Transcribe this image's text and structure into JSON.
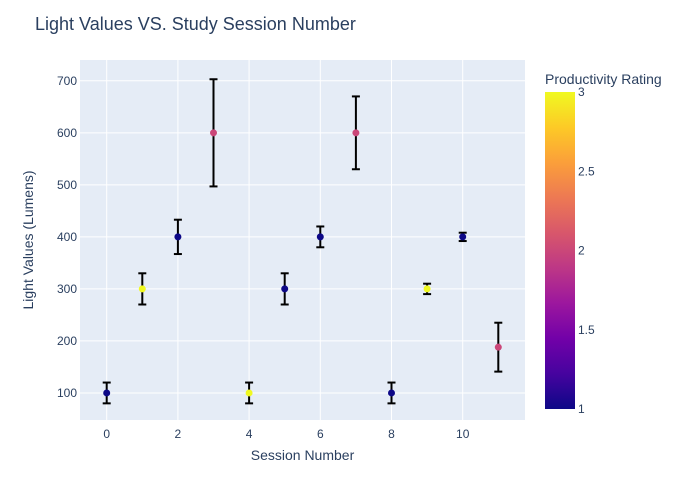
{
  "chart_data": {
    "type": "scatter",
    "title": "Light Values VS. Study Session Number",
    "xlabel": "Session Number",
    "ylabel": "Light Values (Lumens)",
    "xlim": [
      -0.75,
      11.75
    ],
    "ylim": [
      48,
      740
    ],
    "xticks": [
      0,
      2,
      4,
      6,
      8,
      10
    ],
    "yticks": [
      100,
      200,
      300,
      400,
      500,
      600,
      700
    ],
    "grid": true,
    "background": "#e5ecf6",
    "colorbar": {
      "title": "Productivity Rating",
      "min": 1,
      "max": 3,
      "ticks": [
        1,
        1.5,
        2,
        2.5,
        3
      ],
      "colorscale": [
        "#0d0887",
        "#46039f",
        "#7201a8",
        "#9c179e",
        "#bd3786",
        "#d8576b",
        "#ed7953",
        "#fb9f3a",
        "#fdca26",
        "#f0f921"
      ]
    },
    "points": [
      {
        "x": 0,
        "y": 100,
        "error_low": 20,
        "error_high": 20,
        "productivity": 1
      },
      {
        "x": 1,
        "y": 300,
        "error_low": 30,
        "error_high": 30,
        "productivity": 3
      },
      {
        "x": 2,
        "y": 400,
        "error_low": 33,
        "error_high": 33,
        "productivity": 1
      },
      {
        "x": 3,
        "y": 600,
        "error_low": 103,
        "error_high": 103,
        "productivity": 2
      },
      {
        "x": 4,
        "y": 100,
        "error_low": 20,
        "error_high": 20,
        "productivity": 3
      },
      {
        "x": 5,
        "y": 300,
        "error_low": 30,
        "error_high": 30,
        "productivity": 1
      },
      {
        "x": 6,
        "y": 400,
        "error_low": 20,
        "error_high": 20,
        "productivity": 1
      },
      {
        "x": 7,
        "y": 600,
        "error_low": 70,
        "error_high": 70,
        "productivity": 2
      },
      {
        "x": 8,
        "y": 100,
        "error_low": 20,
        "error_high": 20,
        "productivity": 1
      },
      {
        "x": 9,
        "y": 300,
        "error_low": 10,
        "error_high": 10,
        "productivity": 3
      },
      {
        "x": 10,
        "y": 400,
        "error_low": 8,
        "error_high": 8,
        "productivity": 1
      },
      {
        "x": 11,
        "y": 188,
        "error_low": 47,
        "error_high": 47,
        "productivity": 2
      }
    ]
  }
}
